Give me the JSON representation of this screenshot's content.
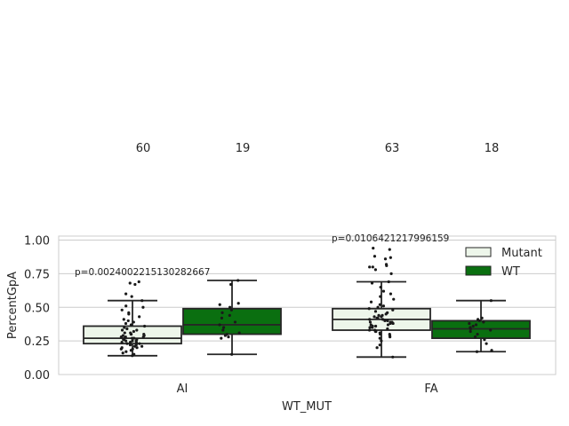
{
  "chart_data": {
    "type": "box",
    "title": "",
    "xlabel": "WT_MUT",
    "ylabel": "PercentGpA",
    "ylim": [
      0,
      1.03
    ],
    "yticks": [
      "0.00",
      "0.25",
      "0.50",
      "0.75",
      "1.00"
    ],
    "ytick_values": [
      0,
      0.25,
      0.5,
      0.75,
      1.0
    ],
    "grid": true,
    "legend_position": "top-right",
    "categories": [
      "AI",
      "FA"
    ],
    "counts": {
      "AI": {
        "Mutant": "60",
        "WT": "19"
      },
      "FA": {
        "Mutant": "63",
        "WT": "18"
      }
    },
    "annotations": {
      "AI": "p=0.0024002215130282667",
      "FA": "p=0.0106421217996159"
    },
    "series": [
      {
        "name": "Mutant",
        "color": "#edf6ea",
        "boxes": {
          "AI": {
            "whisker_low": 0.14,
            "q1": 0.23,
            "median": 0.27,
            "q3": 0.36,
            "whisker_high": 0.55
          },
          "FA": {
            "whisker_low": 0.13,
            "q1": 0.33,
            "median": 0.41,
            "q3": 0.49,
            "whisker_high": 0.69
          }
        },
        "points": {
          "AI": [
            0.14,
            0.15,
            0.16,
            0.17,
            0.18,
            0.19,
            0.2,
            0.21,
            0.21,
            0.22,
            0.23,
            0.23,
            0.24,
            0.24,
            0.25,
            0.25,
            0.26,
            0.26,
            0.27,
            0.27,
            0.27,
            0.28,
            0.28,
            0.29,
            0.29,
            0.3,
            0.3,
            0.31,
            0.31,
            0.32,
            0.33,
            0.34,
            0.35,
            0.36,
            0.37,
            0.38,
            0.39,
            0.4,
            0.41,
            0.43,
            0.45,
            0.46,
            0.48,
            0.5,
            0.51,
            0.55,
            0.58,
            0.6,
            0.67,
            0.68,
            0.69,
            0.22,
            0.26,
            0.28,
            0.3,
            0.33,
            0.19,
            0.24,
            0.2,
            0.25
          ],
          "FA": [
            0.13,
            0.2,
            0.22,
            0.25,
            0.27,
            0.29,
            0.3,
            0.31,
            0.32,
            0.33,
            0.34,
            0.35,
            0.36,
            0.37,
            0.38,
            0.38,
            0.39,
            0.39,
            0.4,
            0.4,
            0.41,
            0.41,
            0.42,
            0.42,
            0.43,
            0.44,
            0.45,
            0.46,
            0.47,
            0.48,
            0.49,
            0.5,
            0.51,
            0.52,
            0.54,
            0.56,
            0.58,
            0.6,
            0.62,
            0.65,
            0.68,
            0.69,
            0.75,
            0.78,
            0.8,
            0.8,
            0.81,
            0.82,
            0.86,
            0.87,
            0.88,
            0.93,
            0.94,
            0.35,
            0.37,
            0.33,
            0.44,
            0.3,
            0.28,
            0.36,
            0.43,
            0.39,
            0.32
          ]
        }
      },
      {
        "name": "WT",
        "color": "#0a6f10",
        "boxes": {
          "AI": {
            "whisker_low": 0.15,
            "q1": 0.3,
            "median": 0.37,
            "q3": 0.49,
            "whisker_high": 0.7
          },
          "FA": {
            "whisker_low": 0.17,
            "q1": 0.27,
            "median": 0.34,
            "q3": 0.4,
            "whisker_high": 0.55
          }
        },
        "points": {
          "AI": [
            0.15,
            0.27,
            0.28,
            0.29,
            0.3,
            0.31,
            0.33,
            0.35,
            0.37,
            0.39,
            0.42,
            0.44,
            0.46,
            0.48,
            0.5,
            0.52,
            0.53,
            0.67,
            0.7
          ],
          "FA": [
            0.17,
            0.18,
            0.23,
            0.26,
            0.28,
            0.3,
            0.32,
            0.33,
            0.34,
            0.35,
            0.36,
            0.37,
            0.38,
            0.39,
            0.4,
            0.41,
            0.42,
            0.55
          ]
        }
      }
    ]
  }
}
